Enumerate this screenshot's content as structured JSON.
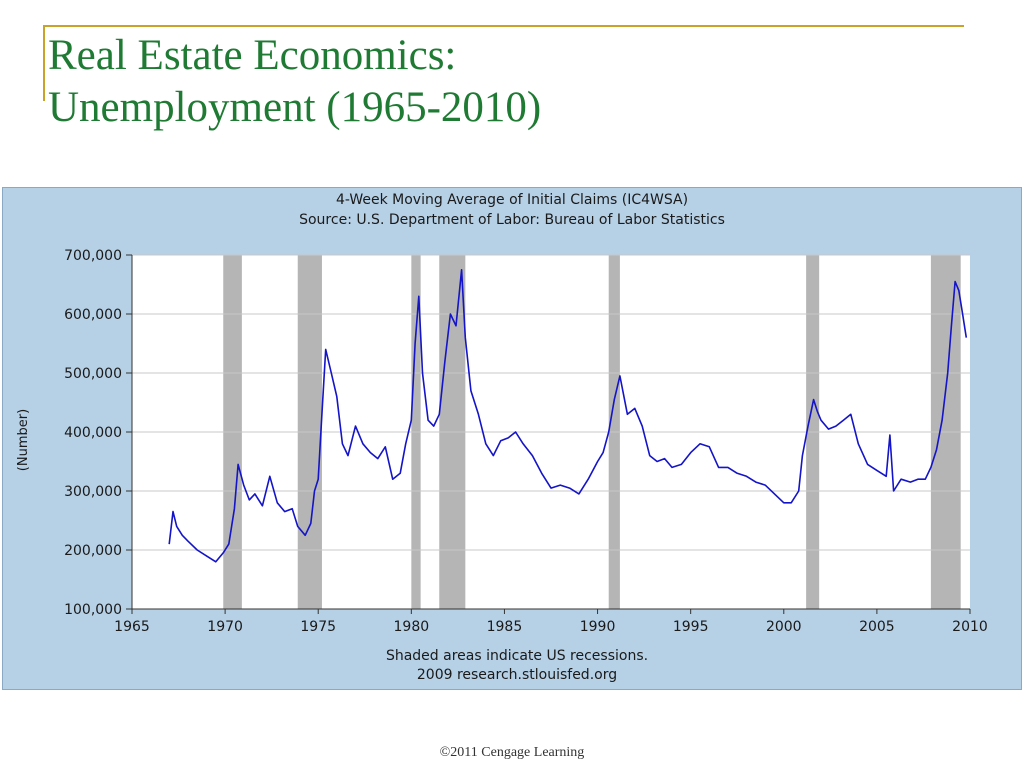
{
  "slide": {
    "title_line1": "Real Estate Economics:",
    "title_line2": "Unemployment (1965-2010)",
    "footer": "©2011 Cengage Learning"
  },
  "colors": {
    "title": "#1f7a33",
    "accent_rule": "#c9a227",
    "panel_bg": "#b6d0e6",
    "series": "#1414c8",
    "recession": "#b5b5b5"
  },
  "chart_data": {
    "type": "line",
    "title": "4-Week Moving Average of Initial Claims (IC4WSA)",
    "subtitle": "Source: U.S. Department of Labor: Bureau of Labor Statistics",
    "xlabel": "",
    "ylabel": "(Number)",
    "xlim": [
      1965,
      2010
    ],
    "ylim": [
      100000,
      700000
    ],
    "x_ticks": [
      1965,
      1970,
      1975,
      1980,
      1985,
      1990,
      1995,
      2000,
      2005,
      2010
    ],
    "y_ticks": [
      100000,
      200000,
      300000,
      400000,
      500000,
      600000,
      700000
    ],
    "y_tick_labels": [
      "100,000",
      "200,000",
      "300,000",
      "400,000",
      "500,000",
      "600,000",
      "700,000"
    ],
    "grid": "horizontal",
    "notes": [
      "Shaded areas indicate US recessions.",
      "2009 research.stlouisfed.org"
    ],
    "recessions": [
      [
        1969.9,
        1970.9
      ],
      [
        1973.9,
        1975.2
      ],
      [
        1980.0,
        1980.5
      ],
      [
        1981.5,
        1982.9
      ],
      [
        1990.6,
        1991.2
      ],
      [
        2001.2,
        2001.9
      ],
      [
        2007.9,
        2009.5
      ]
    ],
    "series": [
      {
        "x": [
          1967.0,
          1967.2,
          1967.4,
          1967.7,
          1968.0,
          1968.5,
          1969.0,
          1969.5,
          1969.9,
          1970.2,
          1970.5,
          1970.7,
          1971.0,
          1971.3,
          1971.6,
          1972.0,
          1972.4,
          1972.8,
          1973.2,
          1973.6,
          1973.9,
          1974.3,
          1974.6,
          1974.8,
          1975.0,
          1975.2,
          1975.4,
          1975.7,
          1976.0,
          1976.3,
          1976.6,
          1977.0,
          1977.4,
          1977.8,
          1978.2,
          1978.6,
          1979.0,
          1979.4,
          1979.7,
          1980.0,
          1980.2,
          1980.4,
          1980.6,
          1980.9,
          1981.2,
          1981.5,
          1981.8,
          1982.1,
          1982.4,
          1982.7,
          1982.9,
          1983.2,
          1983.6,
          1984.0,
          1984.4,
          1984.8,
          1985.2,
          1985.6,
          1986.0,
          1986.5,
          1987.0,
          1987.5,
          1988.0,
          1988.5,
          1989.0,
          1989.5,
          1990.0,
          1990.3,
          1990.6,
          1990.9,
          1991.2,
          1991.6,
          1992.0,
          1992.4,
          1992.8,
          1993.2,
          1993.6,
          1994.0,
          1994.5,
          1995.0,
          1995.5,
          1996.0,
          1996.5,
          1997.0,
          1997.5,
          1998.0,
          1998.5,
          1999.0,
          1999.5,
          2000.0,
          2000.4,
          2000.8,
          2001.0,
          2001.3,
          2001.6,
          2001.8,
          2002.0,
          2002.4,
          2002.8,
          2003.2,
          2003.6,
          2004.0,
          2004.5,
          2005.0,
          2005.5,
          2005.7,
          2005.9,
          2006.3,
          2006.8,
          2007.2,
          2007.6,
          2007.9,
          2008.2,
          2008.5,
          2008.8,
          2009.0,
          2009.2,
          2009.4,
          2009.6,
          2009.8
        ],
        "values": [
          210000,
          265000,
          240000,
          225000,
          215000,
          200000,
          190000,
          180000,
          195000,
          210000,
          270000,
          345000,
          310000,
          285000,
          295000,
          275000,
          325000,
          280000,
          265000,
          270000,
          240000,
          225000,
          245000,
          300000,
          320000,
          430000,
          540000,
          500000,
          460000,
          380000,
          360000,
          410000,
          380000,
          365000,
          355000,
          375000,
          320000,
          330000,
          380000,
          420000,
          550000,
          630000,
          500000,
          420000,
          410000,
          430000,
          520000,
          600000,
          580000,
          675000,
          560000,
          470000,
          430000,
          380000,
          360000,
          385000,
          390000,
          400000,
          380000,
          360000,
          330000,
          305000,
          310000,
          305000,
          295000,
          320000,
          350000,
          365000,
          400000,
          455000,
          495000,
          430000,
          440000,
          410000,
          360000,
          350000,
          355000,
          340000,
          345000,
          365000,
          380000,
          375000,
          340000,
          340000,
          330000,
          325000,
          315000,
          310000,
          295000,
          280000,
          280000,
          300000,
          360000,
          410000,
          455000,
          435000,
          420000,
          405000,
          410000,
          420000,
          430000,
          380000,
          345000,
          335000,
          325000,
          395000,
          300000,
          320000,
          315000,
          320000,
          320000,
          340000,
          370000,
          420000,
          500000,
          580000,
          655000,
          640000,
          600000,
          560000
        ]
      }
    ]
  }
}
